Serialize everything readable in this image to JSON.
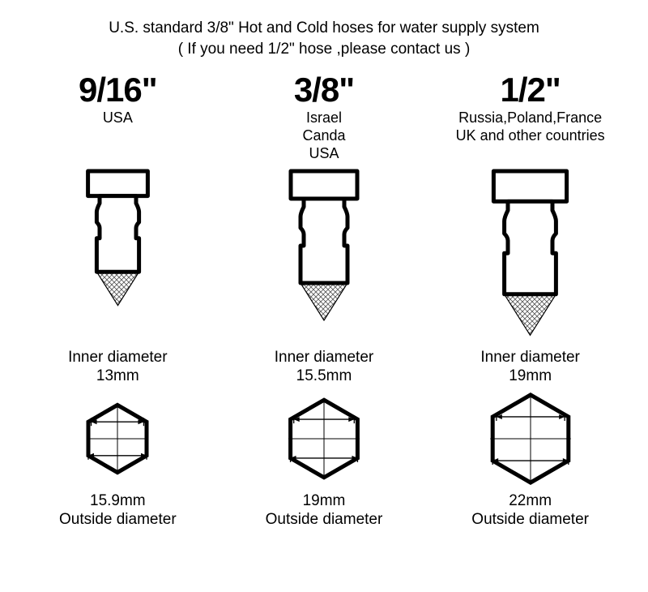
{
  "header": {
    "line1": "U.S. standard 3/8\" Hot and Cold hoses for water supply system",
    "line2": "( If you need 1/2\" hose ,please contact us )"
  },
  "labels": {
    "inner": "Inner diameter",
    "outer": "Outside diameter"
  },
  "style": {
    "stroke": "#000000",
    "stroke_width_connector": 5,
    "stroke_width_hex": 5,
    "hatch_color": "#555555",
    "background": "#ffffff",
    "font_family": "Arial",
    "header_fontsize": 19,
    "title_fontsize": 42,
    "region_fontsize": 18,
    "dim_fontsize": 19
  },
  "variants": [
    {
      "size": "9/16\"",
      "regions": [
        "USA"
      ],
      "inner": "13mm",
      "outer": "15.9mm",
      "hex_scale": 0.8,
      "connector_scale": 0.9
    },
    {
      "size": "3/8\"",
      "regions": [
        "Israel",
        "Canda",
        "USA"
      ],
      "inner": "15.5mm",
      "outer": "19mm",
      "hex_scale": 0.92,
      "connector_scale": 1.0
    },
    {
      "size": "1/2\"",
      "regions": [
        "Russia,Poland,France",
        "UK and other countries"
      ],
      "inner": "19mm",
      "outer": "22mm",
      "hex_scale": 1.04,
      "connector_scale": 1.1
    }
  ]
}
